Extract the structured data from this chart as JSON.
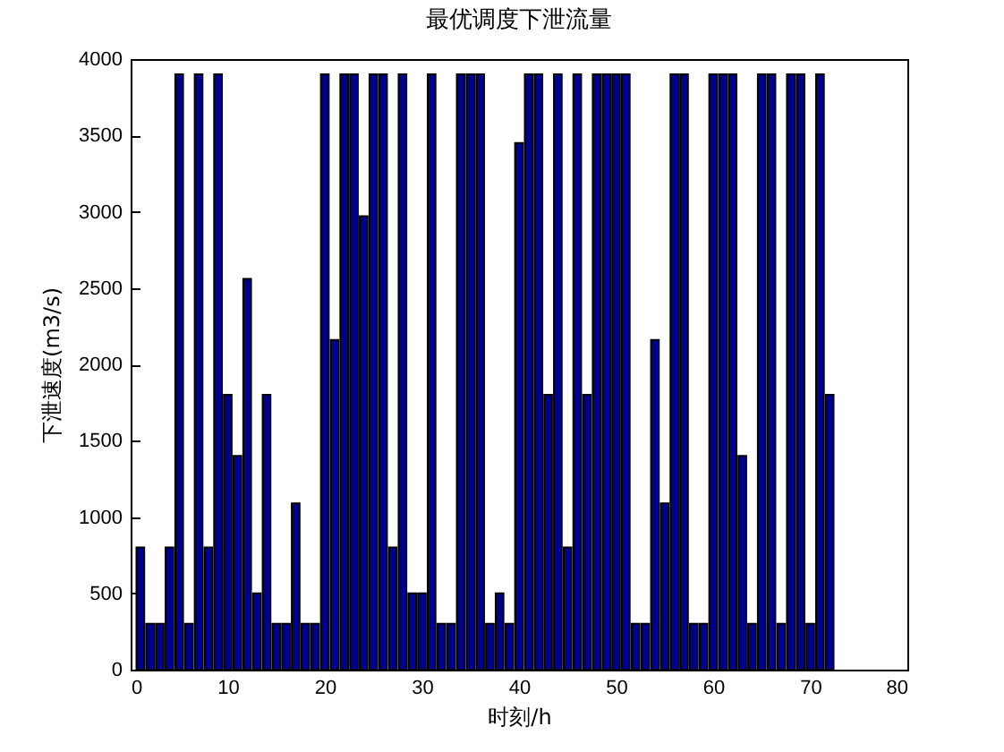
{
  "chart_data": {
    "type": "bar",
    "title": "最优调度下泄流量",
    "xlabel": "时刻/h",
    "ylabel": "下泄速度(m3/s)",
    "x": [
      1,
      2,
      3,
      4,
      5,
      6,
      7,
      8,
      9,
      10,
      11,
      12,
      13,
      14,
      15,
      16,
      17,
      18,
      19,
      20,
      21,
      22,
      23,
      24,
      25,
      26,
      27,
      28,
      29,
      30,
      31,
      32,
      33,
      34,
      35,
      36,
      37,
      38,
      39,
      40,
      41,
      42,
      43,
      44,
      45,
      46,
      47,
      48,
      49,
      50,
      51,
      52,
      53,
      54,
      55,
      56,
      57,
      58,
      59,
      60,
      61,
      62,
      63,
      64,
      65,
      66,
      67,
      68,
      69,
      70,
      71,
      72
    ],
    "values": [
      800,
      300,
      300,
      800,
      3900,
      300,
      3900,
      800,
      3900,
      1800,
      1400,
      2560,
      500,
      1800,
      300,
      300,
      1090,
      300,
      300,
      3900,
      2160,
      3900,
      3900,
      2970,
      3900,
      3900,
      800,
      3900,
      500,
      500,
      3900,
      300,
      300,
      3900,
      3900,
      3900,
      300,
      500,
      300,
      3450,
      3900,
      3900,
      1800,
      3900,
      800,
      3900,
      1800,
      3900,
      3900,
      3900,
      3900,
      300,
      300,
      2160,
      1090,
      3900,
      3900,
      300,
      300,
      3900,
      3900,
      3900,
      1400,
      300,
      3900,
      3900,
      300,
      3900,
      3900,
      300,
      3900,
      1800
    ],
    "color": "#00008f",
    "xlim": [
      0,
      80
    ],
    "xticks": [
      0,
      10,
      20,
      30,
      40,
      50,
      60,
      70,
      80
    ],
    "ylim": [
      0,
      4000
    ],
    "yticks": [
      0,
      500,
      1000,
      1500,
      2000,
      2500,
      3000,
      3500,
      4000
    ]
  }
}
